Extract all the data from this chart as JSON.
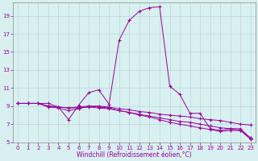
{
  "xlabel": "Windchill (Refroidissement éolien,°C)",
  "background_color": "#d8f0f0",
  "line_color": "#990099",
  "grid_color": "#c0e0e0",
  "xlim": [
    -0.5,
    23.5
  ],
  "ylim": [
    5,
    20
  ],
  "xticks": [
    0,
    1,
    2,
    3,
    4,
    5,
    6,
    7,
    8,
    9,
    10,
    11,
    12,
    13,
    14,
    15,
    16,
    17,
    18,
    19,
    20,
    21,
    22,
    23
  ],
  "yticks": [
    5,
    7,
    9,
    11,
    13,
    15,
    17,
    19
  ],
  "series1_x": [
    0,
    1,
    2,
    3,
    4,
    5,
    6,
    7,
    8,
    9,
    10,
    11,
    12,
    13,
    14,
    15,
    16,
    17,
    18,
    19,
    20,
    21,
    22,
    23
  ],
  "series1_y": [
    9.3,
    9.3,
    9.3,
    9.3,
    8.9,
    7.5,
    9.1,
    10.5,
    10.8,
    9.2,
    16.3,
    18.5,
    19.5,
    19.9,
    20.0,
    11.2,
    10.3,
    8.2,
    8.2,
    6.5,
    6.3,
    6.5,
    6.5,
    5.4
  ],
  "series2_x": [
    0,
    1,
    2,
    3,
    4,
    5,
    6,
    7,
    8,
    9,
    10,
    11,
    12,
    13,
    14,
    15,
    16,
    17,
    18,
    19,
    20,
    21,
    22,
    23
  ],
  "series2_y": [
    9.3,
    9.3,
    9.3,
    9.0,
    8.9,
    8.8,
    8.9,
    9.0,
    9.0,
    8.9,
    8.7,
    8.6,
    8.4,
    8.3,
    8.1,
    8.0,
    7.9,
    7.8,
    7.6,
    7.5,
    7.4,
    7.2,
    7.0,
    6.9
  ],
  "series3_x": [
    0,
    1,
    2,
    3,
    4,
    5,
    6,
    7,
    8,
    9,
    10,
    11,
    12,
    13,
    14,
    15,
    16,
    17,
    18,
    19,
    20,
    21,
    22,
    23
  ],
  "series3_y": [
    9.3,
    9.3,
    9.3,
    9.0,
    8.9,
    8.8,
    8.8,
    8.9,
    8.8,
    8.7,
    8.5,
    8.3,
    8.1,
    7.9,
    7.7,
    7.5,
    7.3,
    7.2,
    7.0,
    6.8,
    6.6,
    6.5,
    6.3,
    5.5
  ],
  "series4_x": [
    0,
    1,
    2,
    3,
    4,
    5,
    6,
    7,
    8,
    9,
    10,
    11,
    12,
    13,
    14,
    15,
    16,
    17,
    18,
    19,
    20,
    21,
    22,
    23
  ],
  "series4_y": [
    9.3,
    9.3,
    9.3,
    8.9,
    8.8,
    8.5,
    8.7,
    9.0,
    8.9,
    8.8,
    8.5,
    8.3,
    8.0,
    7.8,
    7.5,
    7.2,
    7.0,
    6.8,
    6.6,
    6.4,
    6.2,
    6.3,
    6.3,
    5.3
  ],
  "tick_fontsize": 5,
  "xlabel_fontsize": 5.5
}
